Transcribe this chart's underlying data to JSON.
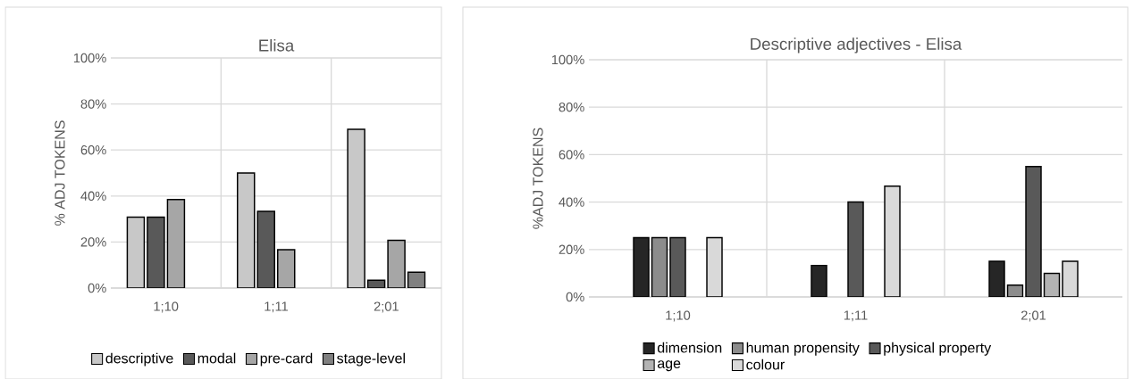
{
  "chart_data": [
    {
      "type": "bar",
      "title": "Elisa",
      "ylabel": "% ADJ TOKENS",
      "categories": [
        "1;10",
        "1;11",
        "2;01"
      ],
      "ylim": [
        0,
        100
      ],
      "yticks": [
        {
          "value": 0,
          "label": "0%"
        },
        {
          "value": 20,
          "label": "20%"
        },
        {
          "value": 40,
          "label": "40%"
        },
        {
          "value": 60,
          "label": "60%"
        },
        {
          "value": 80,
          "label": "80%"
        },
        {
          "value": 100,
          "label": "100%"
        }
      ],
      "grid": true,
      "legend": "bottom",
      "series": [
        {
          "name": "descriptive",
          "color": "#c8c8c8",
          "values": [
            30.8,
            50,
            69
          ]
        },
        {
          "name": "modal",
          "color": "#595959",
          "values": [
            30.8,
            33.3,
            3.4
          ]
        },
        {
          "name": "pre-card",
          "color": "#a6a6a6",
          "values": [
            38.5,
            16.7,
            20.7
          ]
        },
        {
          "name": "stage-level",
          "color": "#808080",
          "values": [
            null,
            null,
            6.9
          ]
        }
      ]
    },
    {
      "type": "bar",
      "title": "Descriptive adjectives - Elisa",
      "ylabel": "%ADJ TOKENS",
      "categories": [
        "1;10",
        "1;11",
        "2;01"
      ],
      "ylim": [
        0,
        100
      ],
      "yticks": [
        {
          "value": 0,
          "label": "0%"
        },
        {
          "value": 20,
          "label": "20%"
        },
        {
          "value": 40,
          "label": "40%"
        },
        {
          "value": 60,
          "label": "60%"
        },
        {
          "value": 80,
          "label": "80%"
        },
        {
          "value": 100,
          "label": "100%"
        }
      ],
      "grid": true,
      "legend": "bottom",
      "series": [
        {
          "name": "dimension",
          "color": "#262626",
          "values": [
            25,
            13.3,
            15
          ]
        },
        {
          "name": "human propensity",
          "color": "#8c8c8c",
          "values": [
            25,
            null,
            5
          ]
        },
        {
          "name": "physical property",
          "color": "#595959",
          "values": [
            25,
            40,
            55
          ]
        },
        {
          "name": "age",
          "color": "#b3b3b3",
          "values": [
            null,
            null,
            10
          ]
        },
        {
          "name": "colour",
          "color": "#d9d9d9",
          "values": [
            25,
            46.7,
            15
          ]
        }
      ]
    }
  ]
}
